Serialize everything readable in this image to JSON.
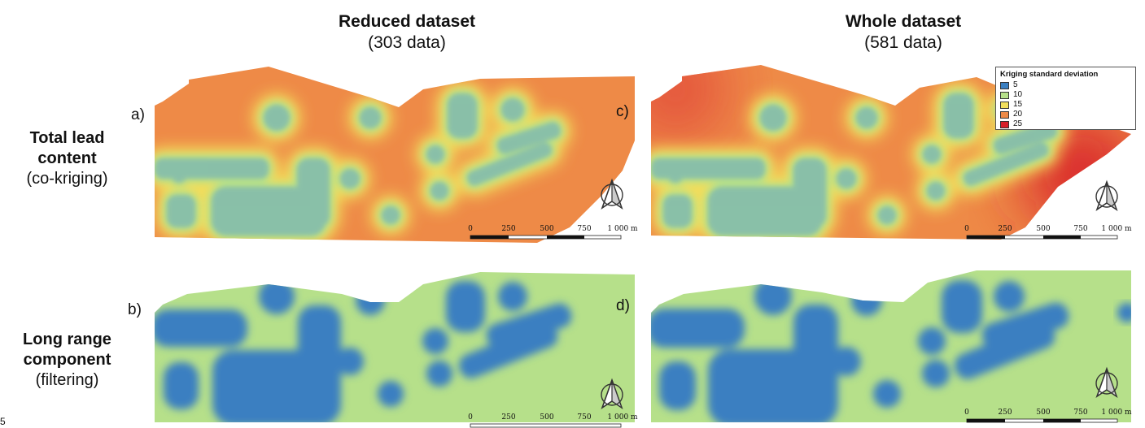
{
  "columns": [
    {
      "title": "Reduced dataset",
      "subtitle": "(303 data)"
    },
    {
      "title": "Whole dataset",
      "subtitle": "(581 data)"
    }
  ],
  "rows": [
    {
      "title_lines": [
        "Total lead",
        "content"
      ],
      "subtitle": "(co-kriging)"
    },
    {
      "title_lines": [
        "Long range",
        "component"
      ],
      "subtitle": "(filtering)"
    }
  ],
  "panels": [
    {
      "letter": "a)"
    },
    {
      "letter": "b)"
    },
    {
      "letter": "c)"
    },
    {
      "letter": "d)"
    }
  ],
  "legend": {
    "title": "Kriging standard deviation",
    "items": [
      {
        "label": "5",
        "color": "#3a7fc1"
      },
      {
        "label": "10",
        "color": "#b6e08a"
      },
      {
        "label": "15",
        "color": "#f2df5c"
      },
      {
        "label": "20",
        "color": "#ee8a47"
      },
      {
        "label": "25",
        "color": "#d8202a"
      }
    ]
  },
  "scale_bar": {
    "ticks": [
      "0",
      "250",
      "500",
      "750",
      "1 000 m"
    ]
  },
  "colors": {
    "high": "#ee8a47",
    "very_high": "#e2483a",
    "mid": "#f2df5c",
    "low": "#b6e08a",
    "lowest": "#3a7fc1"
  },
  "icons": [
    "north-arrow-icon"
  ],
  "stray_mark": "5"
}
